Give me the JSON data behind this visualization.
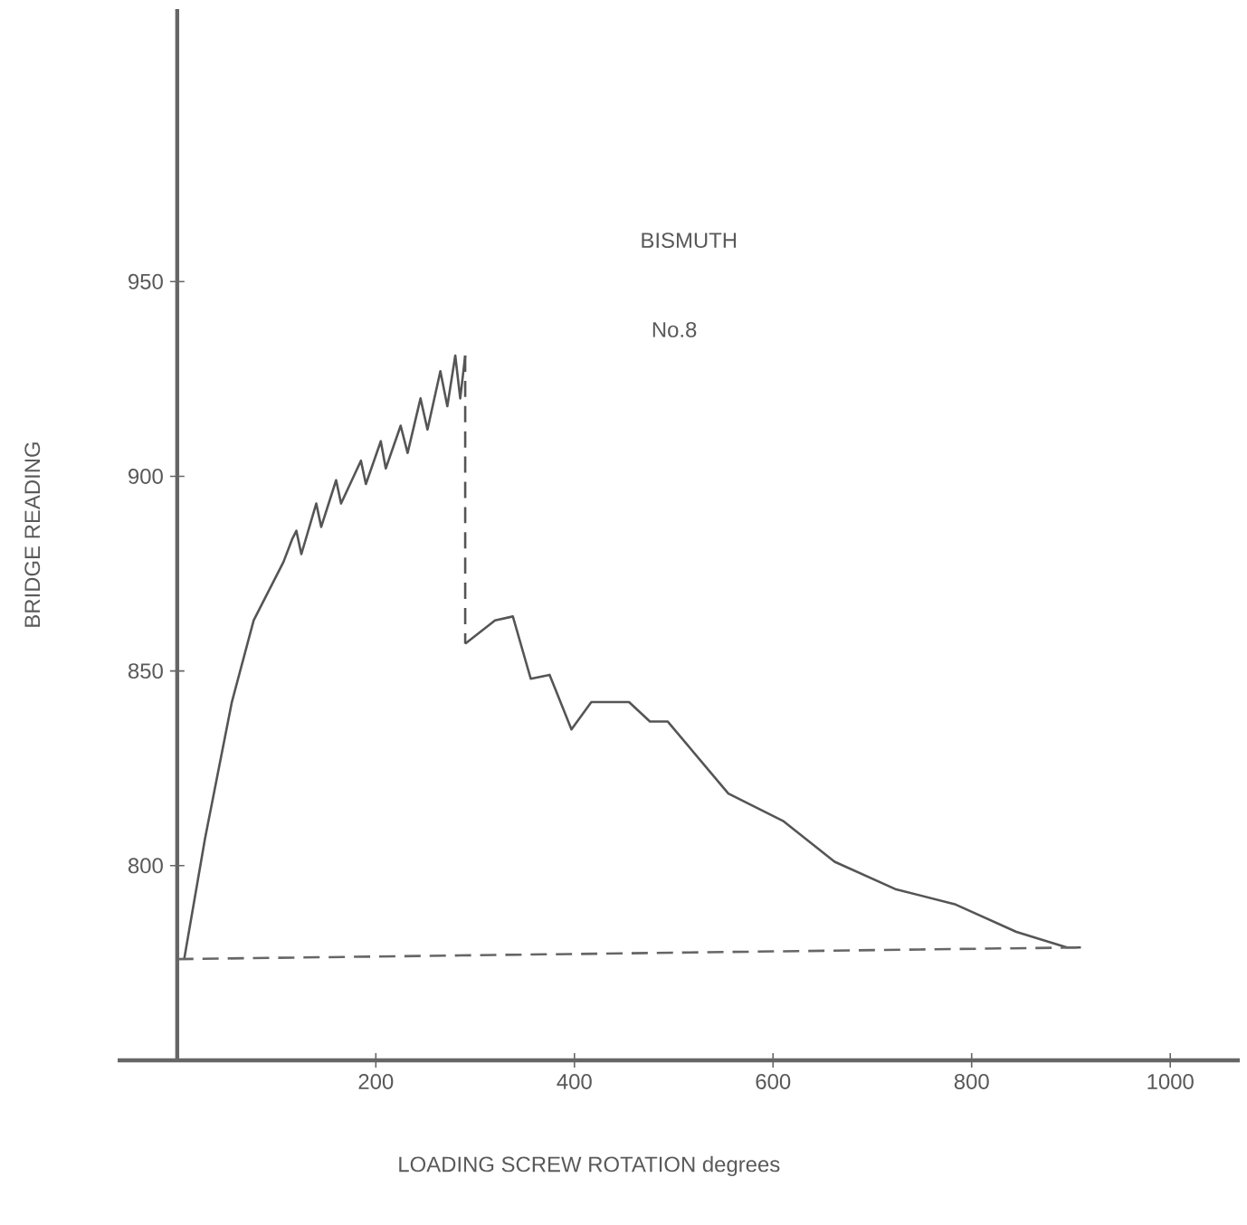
{
  "chart_data": {
    "type": "line",
    "xlabel": "LOADING SCREW ROTATION degrees",
    "ylabel": "BRIDGE READING",
    "annotations": [
      "BISMUTH",
      "No.8"
    ],
    "xlim": [
      -60,
      1070
    ],
    "ylim": [
      750,
      1020
    ],
    "xticks": [
      200,
      400,
      600,
      800,
      1000
    ],
    "yticks": [
      800,
      850,
      900,
      950
    ],
    "marker": "none",
    "series": [
      {
        "color": "#555555",
        "line_style": "solid",
        "x": [
          7,
          28,
          55,
          77,
          107,
          116,
          120,
          125,
          140,
          145,
          160,
          165,
          185,
          190,
          205,
          210,
          225,
          232,
          245,
          252,
          265,
          272,
          280,
          285,
          290
        ],
        "values": [
          776,
          807,
          842,
          863,
          878,
          884,
          886,
          880,
          893,
          887,
          899,
          893,
          904,
          898,
          909,
          902,
          913,
          906,
          920,
          912,
          927,
          918,
          931,
          920,
          931
        ]
      },
      {
        "color": "#555555",
        "line_style": "dashed",
        "x": [
          290,
          290
        ],
        "values": [
          931,
          857
        ]
      },
      {
        "color": "#555555",
        "line_style": "solid",
        "x": [
          290,
          320,
          338,
          356,
          375,
          397,
          417,
          455,
          476,
          494,
          555,
          610,
          662,
          723,
          784,
          845,
          896,
          910
        ],
        "values": [
          857,
          863,
          864,
          848,
          849,
          835,
          842,
          842,
          837,
          837,
          818.5,
          811.5,
          801,
          794,
          790,
          783,
          779,
          779
        ]
      },
      {
        "color": "#666666",
        "line_style": "dashed",
        "x": [
          0,
          910
        ],
        "values": [
          776,
          779
        ]
      }
    ]
  }
}
